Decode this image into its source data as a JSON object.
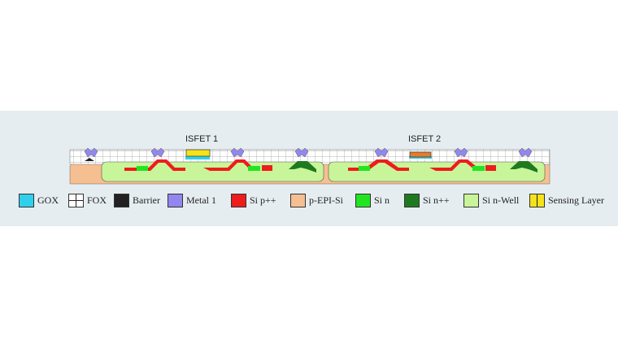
{
  "titles": {
    "isfet1": "ISFET 1",
    "isfet2": "ISFET 2"
  },
  "legend": [
    {
      "label": "GOX",
      "color": "#2fd0ec",
      "pattern": "solid",
      "icon": "gox-swatch"
    },
    {
      "label": "FOX",
      "color": "#ffffff",
      "pattern": "grid",
      "icon": "fox-swatch"
    },
    {
      "label": "Barrier",
      "color": "#222222",
      "pattern": "solid",
      "icon": "barrier-swatch"
    },
    {
      "label": "Metal 1",
      "color": "#9187ee",
      "pattern": "solid",
      "icon": "metal1-swatch"
    },
    {
      "label": "Si p++",
      "color": "#ee1c1c",
      "pattern": "solid",
      "icon": "si-p-swatch"
    },
    {
      "label": "p-EPI-Si",
      "color": "#f6bf91",
      "pattern": "solid",
      "icon": "p-epi-swatch"
    },
    {
      "label": "Si n",
      "color": "#22e522",
      "pattern": "solid",
      "icon": "si-n-swatch"
    },
    {
      "label": "Si n++",
      "color": "#1f7a1f",
      "pattern": "solid",
      "icon": "si-npp-swatch"
    },
    {
      "label": "Si n-Well",
      "color": "#c8f59a",
      "pattern": "solid",
      "icon": "si-nwell-swatch"
    },
    {
      "label": "Sensing Layer",
      "color": "#f5e21a",
      "pattern": "split",
      "icon": "sensing-layer-swatch"
    }
  ],
  "colors": {
    "panel": "#e6edf0",
    "gox": "#2fd0ec",
    "metal": "#9187ee",
    "p_pp": "#ee1c1c",
    "p_epi": "#f6bf91",
    "si_n": "#22e522",
    "si_npp": "#1f7a1f",
    "nwell": "#c8f59a",
    "sensing1": "#f5e21a",
    "sensing2": "#e47c2c",
    "barrier": "#222222"
  }
}
